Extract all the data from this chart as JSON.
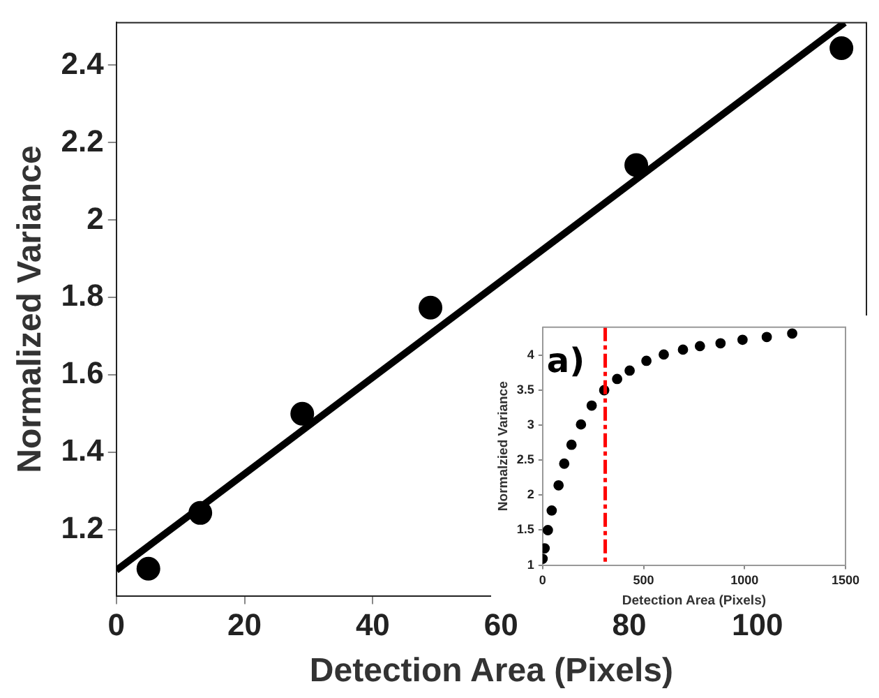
{
  "chart_data": [
    {
      "type": "scatter",
      "xlabel": "Detection Area (Pixels)",
      "ylabel": "Normalized Variance",
      "xlim": [
        0,
        117
      ],
      "xticks": [
        0,
        20,
        40,
        60,
        80,
        100
      ],
      "ylim": [
        1.03,
        2.51
      ],
      "yticks": [
        1.2,
        1.4,
        1.6,
        1.8,
        2,
        2.2,
        2.4
      ],
      "grid": false,
      "legend": false,
      "marker": "circle",
      "series": [
        {
          "type": "scatter",
          "color": "#000000",
          "x": [
            5,
            13.1,
            29,
            49,
            81.1,
            113.1
          ],
          "values": [
            1.1,
            1.244,
            1.5,
            1.774,
            2.142,
            2.444
          ]
        },
        {
          "type": "line",
          "color": "#000000",
          "marker": "none",
          "line_style": "solid",
          "x": [
            0,
            113.6
          ],
          "values": [
            1.096,
            2.51
          ]
        }
      ]
    },
    {
      "type": "scatter",
      "xlabel": "Detection Area (Pixels)",
      "ylabel": "Normalzied Variance",
      "xlim": [
        0,
        1500
      ],
      "xticks": [
        0,
        500,
        1000,
        1500
      ],
      "ylim": [
        1,
        4.4
      ],
      "yticks": [
        1,
        1.5,
        2,
        2.5,
        3,
        3.5,
        4
      ],
      "grid": false,
      "legend": false,
      "marker": "circle",
      "annotations": [
        "a)"
      ],
      "ref_lines": [
        {
          "axis": "x",
          "value": 310,
          "color": "#ff0000",
          "line_style": "dashdot"
        }
      ],
      "series": [
        {
          "type": "scatter",
          "color": "#000000",
          "x": [
            0,
            10,
            26,
            45,
            79,
            107,
            143,
            190,
            243,
            305,
            369,
            431,
            514,
            600,
            695,
            779,
            881,
            990,
            1110,
            1236
          ],
          "values": [
            1.09,
            1.24,
            1.5,
            1.78,
            2.14,
            2.45,
            2.72,
            3.01,
            3.28,
            3.5,
            3.66,
            3.78,
            3.92,
            4.01,
            4.08,
            4.13,
            4.17,
            4.22,
            4.26,
            4.31
          ]
        }
      ]
    }
  ]
}
